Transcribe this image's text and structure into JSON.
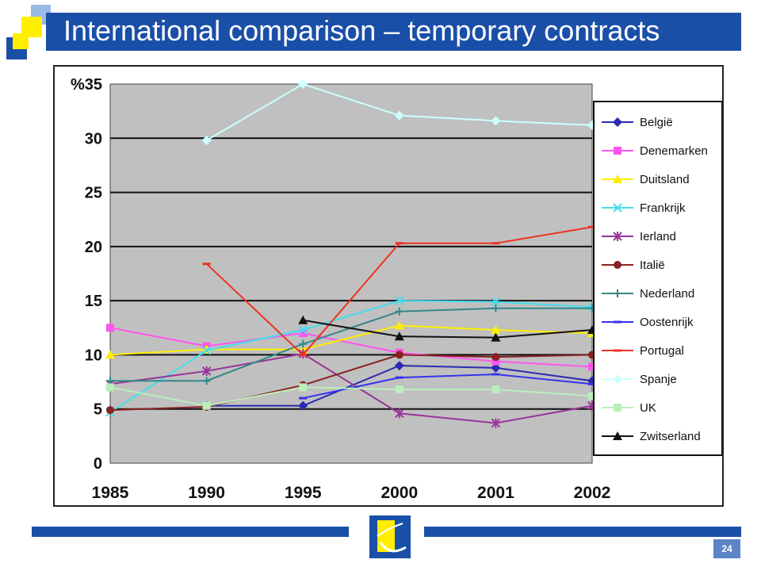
{
  "slide": {
    "title": "International comparison – temporary contracts",
    "page_number": "24",
    "colors": {
      "brand_blue": "#1a4fa8",
      "accent_yellow": "#ffee00",
      "light_blue": "#9ab9e6"
    }
  },
  "chart_data": {
    "type": "line",
    "title": "",
    "xlabel": "",
    "ylabel": "%",
    "categories": [
      "1985",
      "1990",
      "1995",
      "2000",
      "2001",
      "2002"
    ],
    "yticks": [
      "%35",
      "30",
      "25",
      "20",
      "15",
      "10",
      "5",
      "0"
    ],
    "ylim": [
      0,
      35
    ],
    "grid": "horizontal",
    "plot_background": "#c0c0c0",
    "legend_position": "right",
    "series": [
      {
        "name": "België",
        "color": "#2a2ab0",
        "marker": "diamond",
        "values": [
          null,
          5.3,
          5.3,
          9.0,
          8.8,
          7.6
        ]
      },
      {
        "name": "Denemarken",
        "color": "#ff55ee",
        "marker": "square",
        "values": [
          12.5,
          10.8,
          12.0,
          10.2,
          9.4,
          8.9
        ]
      },
      {
        "name": "Duitsland",
        "color": "#ffee00",
        "marker": "triangle",
        "values": [
          10.0,
          10.5,
          10.5,
          12.7,
          12.3,
          12.0
        ]
      },
      {
        "name": "Frankrijk",
        "color": "#44ddee",
        "marker": "x",
        "values": [
          4.7,
          10.4,
          12.3,
          15.0,
          14.9,
          14.4
        ]
      },
      {
        "name": "Ierland",
        "color": "#993399",
        "marker": "star",
        "values": [
          7.3,
          8.5,
          10.1,
          4.6,
          3.7,
          5.3
        ]
      },
      {
        "name": "Italië",
        "color": "#882222",
        "marker": "circle",
        "values": [
          4.9,
          5.2,
          7.2,
          10.0,
          9.8,
          10.0
        ]
      },
      {
        "name": "Nederland",
        "color": "#338888",
        "marker": "plus",
        "values": [
          7.6,
          7.6,
          11.0,
          14.0,
          14.3,
          14.3
        ]
      },
      {
        "name": "Oostenrijk",
        "color": "#3333ee",
        "marker": "dash",
        "values": [
          null,
          null,
          6.0,
          7.9,
          8.2,
          7.3
        ]
      },
      {
        "name": "Portugal",
        "color": "#ee3322",
        "marker": "dash",
        "values": [
          null,
          18.4,
          10.0,
          20.3,
          20.3,
          21.8
        ]
      },
      {
        "name": "Spanje",
        "color": "#ccffff",
        "marker": "diamond",
        "values": [
          null,
          29.8,
          35.0,
          32.1,
          31.6,
          31.2
        ]
      },
      {
        "name": "UK",
        "color": "#bbeebb",
        "marker": "square",
        "values": [
          7.0,
          5.3,
          7.0,
          6.8,
          6.8,
          6.2
        ]
      },
      {
        "name": "Zwitserland",
        "color": "#111111",
        "marker": "triangle",
        "values": [
          null,
          null,
          13.2,
          11.7,
          11.6,
          12.3
        ]
      }
    ]
  }
}
